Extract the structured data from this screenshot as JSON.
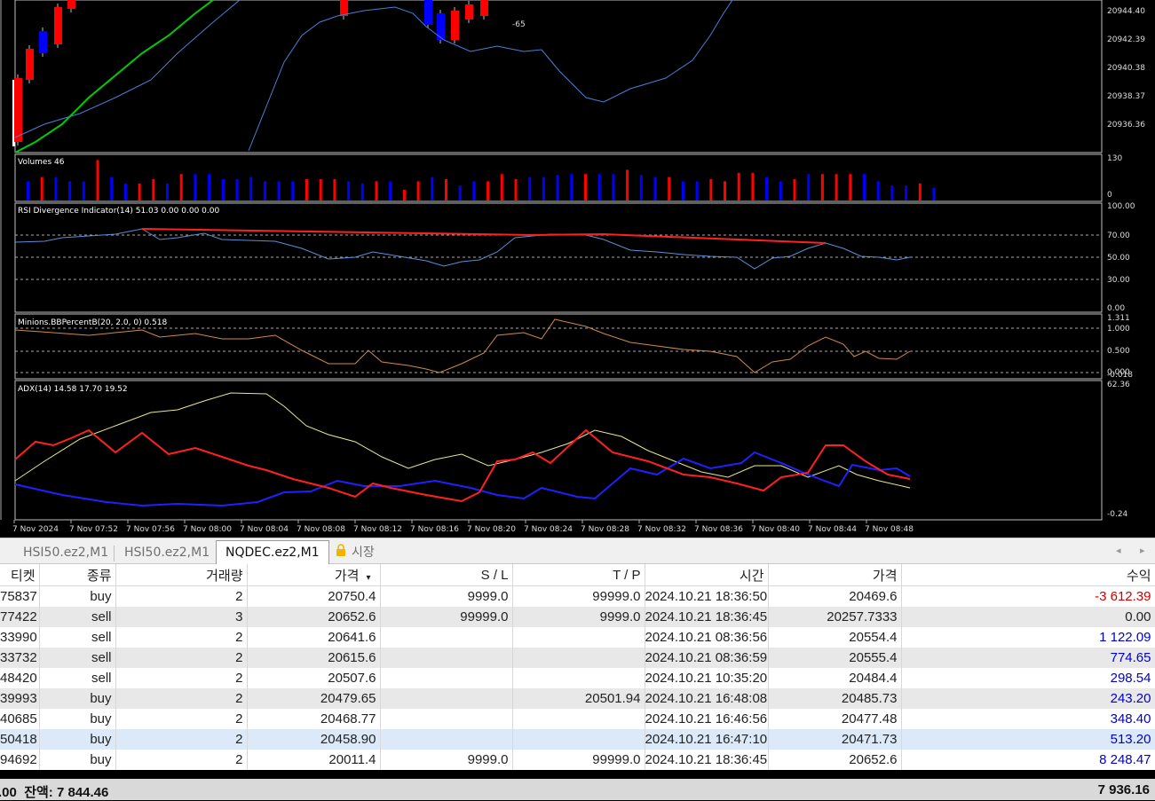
{
  "chart": {
    "main_note": "-65",
    "price_ticks": [
      "20944.40",
      "20942.39",
      "20940.38",
      "20938.37",
      "20936.36"
    ],
    "volumes": {
      "label": "Volumes 46",
      "ticks": [
        "130",
        "0"
      ]
    },
    "rsi": {
      "label": "RSI Divergence Indicator(14) 51.03 0.00 0.00 0.00",
      "ticks": [
        "100.00",
        "70.00",
        "50.00",
        "30.00",
        "0.00"
      ]
    },
    "bbpct": {
      "label": "Minions.BBPercentB(20, 2.0, 0) 0.518",
      "ticks": [
        "1.311",
        "1.000",
        "0.500",
        "0.000",
        "-0.018"
      ]
    },
    "adx": {
      "label": "ADX(14) 14.58 17.70 19.52",
      "ticks": [
        "62.36",
        "-0.24"
      ]
    },
    "time_labels": [
      "7 Nov 2024",
      "7 Nov 07:52",
      "7 Nov 07:56",
      "7 Nov 08:00",
      "7 Nov 08:04",
      "7 Nov 08:08",
      "7 Nov 08:12",
      "7 Nov 08:16",
      "7 Nov 08:20",
      "7 Nov 08:24",
      "7 Nov 08:28",
      "7 Nov 08:32",
      "7 Nov 08:36",
      "7 Nov 08:40",
      "7 Nov 08:44",
      "7 Nov 08:48"
    ],
    "colors": {
      "bull": "#0000ff",
      "bear": "#ff0000",
      "ma_green": "#00cc00",
      "ma_blue": "#4a7fd4",
      "rsi_line": "#5b8fd8",
      "divergence": "#ff2020",
      "bbpct_line": "#d08a4a",
      "adx_main": "#e8e890",
      "adx_plus": "#2020ff",
      "adx_minus": "#ff2020",
      "bg": "#000000",
      "grid_border": "#c8c8c8"
    }
  },
  "tabs": [
    {
      "label": "HSI50.ez2,M1",
      "active": false
    },
    {
      "label": "HSI50.ez2,M1",
      "active": false
    },
    {
      "label": "NQDEC.ez2,M1",
      "active": true
    },
    {
      "label": "시장",
      "active": false
    }
  ],
  "tab_scroll": {
    "left": "◂",
    "right": "▸"
  },
  "table": {
    "headers": {
      "ticket": "티켓",
      "type": "종류",
      "volume": "거래량",
      "price": "가격",
      "sort_arrow": "▾",
      "sl": "S / L",
      "tp": "T / P",
      "time": "시간",
      "cur_price": "가격",
      "profit": "수익"
    },
    "rows": [
      {
        "ticket": "75837",
        "type": "buy",
        "volume": "2",
        "price": "20750.4",
        "sl": "9999.0",
        "tp": "99999.0",
        "time": "2024.10.21 18:36:50",
        "cur_price": "20469.6",
        "profit": "-3 612.39",
        "sign": "neg"
      },
      {
        "ticket": "77422",
        "type": "sell",
        "volume": "3",
        "price": "20652.6",
        "sl": "99999.0",
        "tp": "9999.0",
        "time": "2024.10.21 18:36:45",
        "cur_price": "20257.7333",
        "profit": "0.00",
        "sign": "zero"
      },
      {
        "ticket": "33990",
        "type": "sell",
        "volume": "2",
        "price": "20641.6",
        "sl": "",
        "tp": "",
        "time": "2024.10.21 08:36:56",
        "cur_price": "20554.4",
        "profit": "1 122.09",
        "sign": "pos"
      },
      {
        "ticket": "33732",
        "type": "sell",
        "volume": "2",
        "price": "20615.6",
        "sl": "",
        "tp": "",
        "time": "2024.10.21 08:36:59",
        "cur_price": "20555.4",
        "profit": "774.65",
        "sign": "pos"
      },
      {
        "ticket": "48420",
        "type": "sell",
        "volume": "2",
        "price": "20507.6",
        "sl": "",
        "tp": "",
        "time": "2024.10.21 10:35:20",
        "cur_price": "20484.4",
        "profit": "298.54",
        "sign": "pos"
      },
      {
        "ticket": "39993",
        "type": "buy",
        "volume": "2",
        "price": "20479.65",
        "sl": "",
        "tp": "20501.94",
        "time": "2024.10.21 16:48:08",
        "cur_price": "20485.73",
        "profit": "243.20",
        "sign": "pos"
      },
      {
        "ticket": "40685",
        "type": "buy",
        "volume": "2",
        "price": "20468.77",
        "sl": "",
        "tp": "",
        "time": "2024.10.21 16:46:56",
        "cur_price": "20477.48",
        "profit": "348.40",
        "sign": "pos"
      },
      {
        "ticket": "50418",
        "type": "buy",
        "volume": "2",
        "price": "20458.90",
        "sl": "",
        "tp": "",
        "time": "2024.10.21 16:47:10",
        "cur_price": "20471.73",
        "profit": "513.20",
        "sign": "pos"
      },
      {
        "ticket": "94692",
        "type": "buy",
        "volume": "2",
        "price": "20011.4",
        "sl": "9999.0",
        "tp": "99999.0",
        "time": "2024.10.21 18:36:45",
        "cur_price": "20652.6",
        "profit": "8 248.47",
        "sign": "pos"
      }
    ]
  },
  "footer": {
    "left_prefix": ".00",
    "balance_label": "잔액: 7 844.46",
    "total": "7 936.16"
  }
}
